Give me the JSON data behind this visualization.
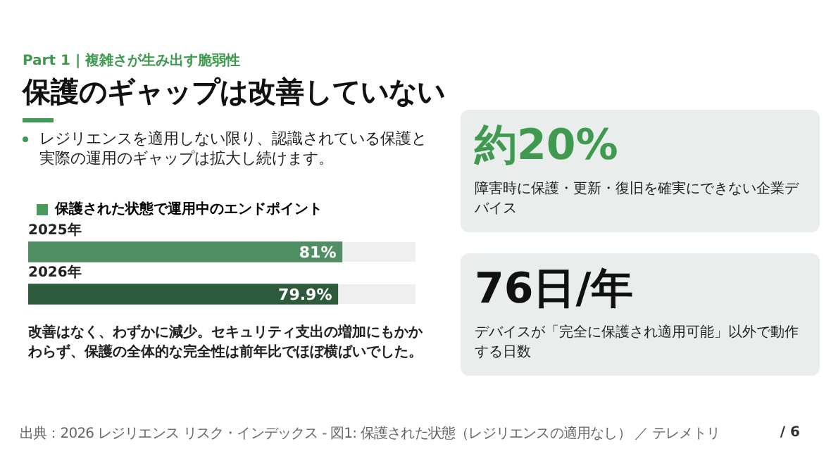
{
  "chart_data": [
    {
      "type": "bar",
      "orientation": "horizontal",
      "title": "保護のギャップは改善していない",
      "subtitle": "Part 1 | 複雑さが生み出す脆弱性",
      "categories": [
        "2025年",
        "2026年"
      ],
      "series": [
        {
          "name": "保護された状態で運用中のエンドポイント",
          "color": "#4a9a5a",
          "colors": [
            "#4f8f63",
            "#2e5a3c"
          ],
          "values": [
            81,
            79.9
          ],
          "value_labels": [
            "81%",
            "79.9%"
          ]
        }
      ],
      "xlim": [
        0,
        100
      ],
      "tick_labels": false,
      "legend": "top left",
      "annotations": [
        "レジリエンスを適用しない限り、認識されている保護と実際の運用のギャップは拡大し続けます。",
        "改善はなく、わずかに減少。セキュリティ支出の増加にもかかわらず、保護の全体的な完全性は前年比でほぼ横ばいでした。",
        "出典：2026 レジリエンス リスク・インデックス - 図1: 保護された状態（レジリエンスの適用なし） ／ テレメトリ",
        "/ 6"
      ]
    },
    {
      "type": "other",
      "title": "約20%",
      "subtitle": "障害時に保護・更新・復旧を確実にできない企業デバイス"
    },
    {
      "type": "other",
      "title": "76日/年",
      "subtitle": "デバイスが「完全に保護され適用可能」以外で動作する日数"
    }
  ]
}
